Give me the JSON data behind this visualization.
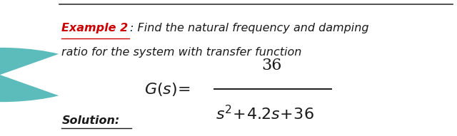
{
  "bg_color": "#ffffff",
  "teal_ellipse_color": "#5BBCBB",
  "example_label": "Example 2",
  "example_label_color": "#CC0000",
  "colon_text": ": Find the natural frequency and damping",
  "line2_text": "ratio for the system with transfer function",
  "text_color": "#1a1a1a",
  "italic_text_color": "#1a1a1a",
  "solution_label": "Solution:",
  "solution_color": "#1a1a1a",
  "numerator": "36",
  "top_line_color": "#333333",
  "figsize": [
    6.4,
    1.91
  ],
  "dpi": 100
}
